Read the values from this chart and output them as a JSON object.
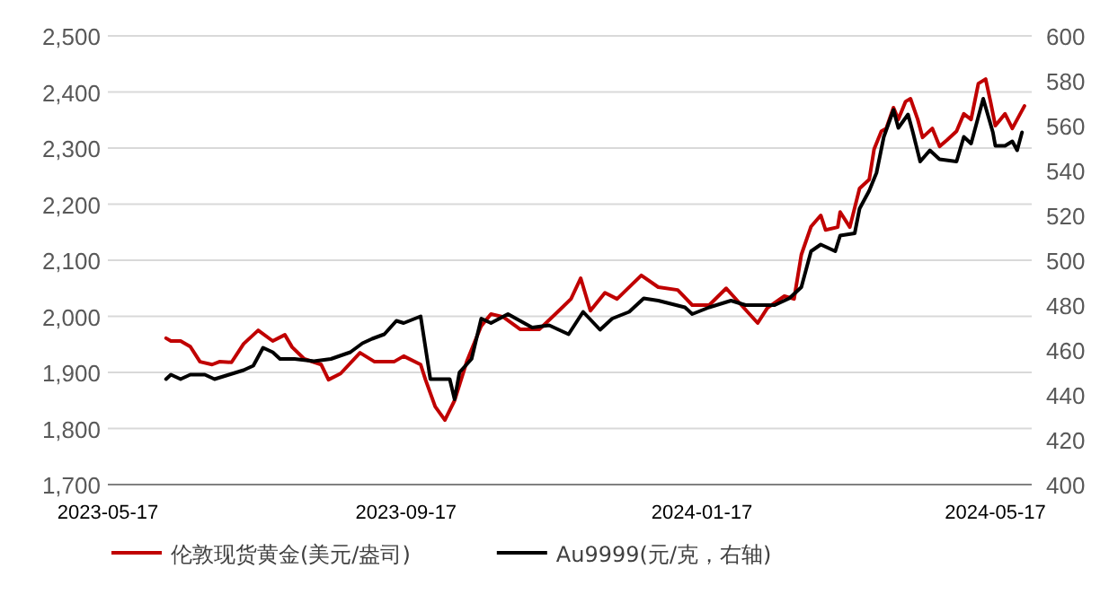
{
  "chart_data": {
    "type": "line",
    "legend": "bottom",
    "grid": "y",
    "marker": "none",
    "line_style": "solid",
    "xlim": [
      "2023-05-17",
      "2024-06-01"
    ],
    "xticks": [
      {
        "value": "2023-05-17",
        "label": "2023-05-17"
      },
      {
        "value": "2023-09-17",
        "label": "2023-09-17"
      },
      {
        "value": "2024-01-17",
        "label": "2024-01-17"
      },
      {
        "value": "2024-05-17",
        "label": "2024-05-17"
      }
    ],
    "ylim": [
      1700,
      2500
    ],
    "yticks": [
      {
        "value": 1700,
        "label": "1,700"
      },
      {
        "value": 1800,
        "label": "1,800"
      },
      {
        "value": 1900,
        "label": "1,900"
      },
      {
        "value": 2000,
        "label": "2,000"
      },
      {
        "value": 2100,
        "label": "2,100"
      },
      {
        "value": 2200,
        "label": "2,200"
      },
      {
        "value": 2300,
        "label": "2,300"
      },
      {
        "value": 2400,
        "label": "2,400"
      },
      {
        "value": 2500,
        "label": "2,500"
      }
    ],
    "y2lim": [
      400,
      600
    ],
    "y2ticks": [
      400,
      420,
      440,
      460,
      480,
      500,
      520,
      540,
      560,
      580,
      600
    ],
    "series": [
      {
        "name": "伦敦现货黄金(美元/盎司)",
        "color": "#c00000",
        "x": [
          "2023-06-10",
          "2023-06-12",
          "2023-06-16",
          "2023-06-20",
          "2023-06-24",
          "2023-06-29",
          "2023-07-02",
          "2023-07-07",
          "2023-07-12",
          "2023-07-18",
          "2023-07-24",
          "2023-07-29",
          "2023-08-01",
          "2023-08-06",
          "2023-08-13",
          "2023-08-16",
          "2023-08-21",
          "2023-08-29",
          "2023-09-04",
          "2023-09-12",
          "2023-09-16",
          "2023-09-23",
          "2023-09-25",
          "2023-09-29",
          "2023-10-03",
          "2023-10-07",
          "2023-10-12",
          "2023-10-18",
          "2023-10-22",
          "2023-10-27",
          "2023-11-03",
          "2023-11-11",
          "2023-11-19",
          "2023-11-24",
          "2023-11-28",
          "2023-12-02",
          "2023-12-08",
          "2023-12-13",
          "2023-12-23",
          "2023-12-30",
          "2024-01-07",
          "2024-01-13",
          "2024-01-20",
          "2024-01-27",
          "2024-02-01",
          "2024-02-09",
          "2024-02-13",
          "2024-02-20",
          "2024-02-24",
          "2024-02-27",
          "2024-03-02",
          "2024-03-06",
          "2024-03-08",
          "2024-03-13",
          "2024-03-14",
          "2024-03-18",
          "2024-03-22",
          "2024-03-26",
          "2024-03-28",
          "2024-03-31",
          "2024-04-02",
          "2024-04-05",
          "2024-04-07",
          "2024-04-10",
          "2024-04-12",
          "2024-04-15",
          "2024-04-17",
          "2024-04-21",
          "2024-04-24",
          "2024-04-27",
          "2024-05-01",
          "2024-05-04",
          "2024-05-07",
          "2024-05-10",
          "2024-05-13",
          "2024-05-15",
          "2024-05-17",
          "2024-05-21",
          "2024-05-24",
          "2024-05-26",
          "2024-05-29"
        ],
        "values": [
          1961,
          1956,
          1956,
          1946,
          1919,
          1914,
          1919,
          1918,
          1951,
          1975,
          1956,
          1967,
          1945,
          1924,
          1914,
          1887,
          1898,
          1935,
          1919,
          1919,
          1929,
          1914,
          1887,
          1839,
          1815,
          1850,
          1919,
          1983,
          2004,
          1999,
          1977,
          1977,
          2010,
          2031,
          2068,
          2010,
          2042,
          2031,
          2073,
          2052,
          2047,
          2020,
          2020,
          2050,
          2026,
          1988,
          2015,
          2036,
          2031,
          2110,
          2160,
          2180,
          2154,
          2159,
          2186,
          2159,
          2228,
          2244,
          2298,
          2330,
          2335,
          2372,
          2351,
          2383,
          2388,
          2351,
          2319,
          2335,
          2303,
          2314,
          2330,
          2361,
          2351,
          2415,
          2423,
          2383,
          2340,
          2361,
          2335,
          2351,
          2375
        ]
      },
      {
        "name": "Au9999(元/克，右轴)",
        "color": "#000000",
        "axis": "y2",
        "x": [
          "2023-06-10",
          "2023-06-12",
          "2023-06-16",
          "2023-06-20",
          "2023-06-26",
          "2023-06-30",
          "2023-07-06",
          "2023-07-12",
          "2023-07-16",
          "2023-07-20",
          "2023-07-24",
          "2023-07-27",
          "2023-08-02",
          "2023-08-10",
          "2023-08-17",
          "2023-08-25",
          "2023-08-30",
          "2023-09-03",
          "2023-09-08",
          "2023-09-13",
          "2023-09-16",
          "2023-09-23",
          "2023-09-27",
          "2023-10-05",
          "2023-10-07",
          "2023-10-09",
          "2023-10-14",
          "2023-10-18",
          "2023-10-22",
          "2023-10-29",
          "2023-11-03",
          "2023-11-08",
          "2023-11-15",
          "2023-11-23",
          "2023-11-29",
          "2023-12-06",
          "2023-12-11",
          "2023-12-18",
          "2023-12-24",
          "2023-12-30",
          "2024-01-10",
          "2024-01-13",
          "2024-01-20",
          "2024-01-29",
          "2024-02-04",
          "2024-02-16",
          "2024-02-22",
          "2024-02-27",
          "2024-03-02",
          "2024-03-06",
          "2024-03-10",
          "2024-03-12",
          "2024-03-14",
          "2024-03-20",
          "2024-03-22",
          "2024-03-26",
          "2024-03-29",
          "2024-04-01",
          "2024-04-05",
          "2024-04-07",
          "2024-04-11",
          "2024-04-13",
          "2024-04-16",
          "2024-04-20",
          "2024-04-24",
          "2024-05-01",
          "2024-05-04",
          "2024-05-07",
          "2024-05-12",
          "2024-05-16",
          "2024-05-17",
          "2024-05-21",
          "2024-05-24",
          "2024-05-26",
          "2024-05-28"
        ],
        "values": [
          447,
          449,
          447,
          449,
          449,
          447,
          449,
          451,
          453,
          461,
          459,
          456,
          456,
          455,
          456,
          459,
          463,
          465,
          467,
          473,
          472,
          475,
          447,
          447,
          438,
          450,
          456,
          474,
          472,
          476,
          473,
          470,
          471,
          467,
          477,
          469,
          474,
          477,
          483,
          482,
          479,
          476,
          479,
          482,
          480,
          480,
          483,
          488,
          504,
          507,
          505,
          504,
          511,
          512,
          523,
          531,
          539,
          555,
          567,
          559,
          565,
          557,
          544,
          549,
          545,
          544,
          555,
          552,
          572,
          557,
          551,
          551,
          553,
          549,
          557
        ]
      }
    ]
  }
}
